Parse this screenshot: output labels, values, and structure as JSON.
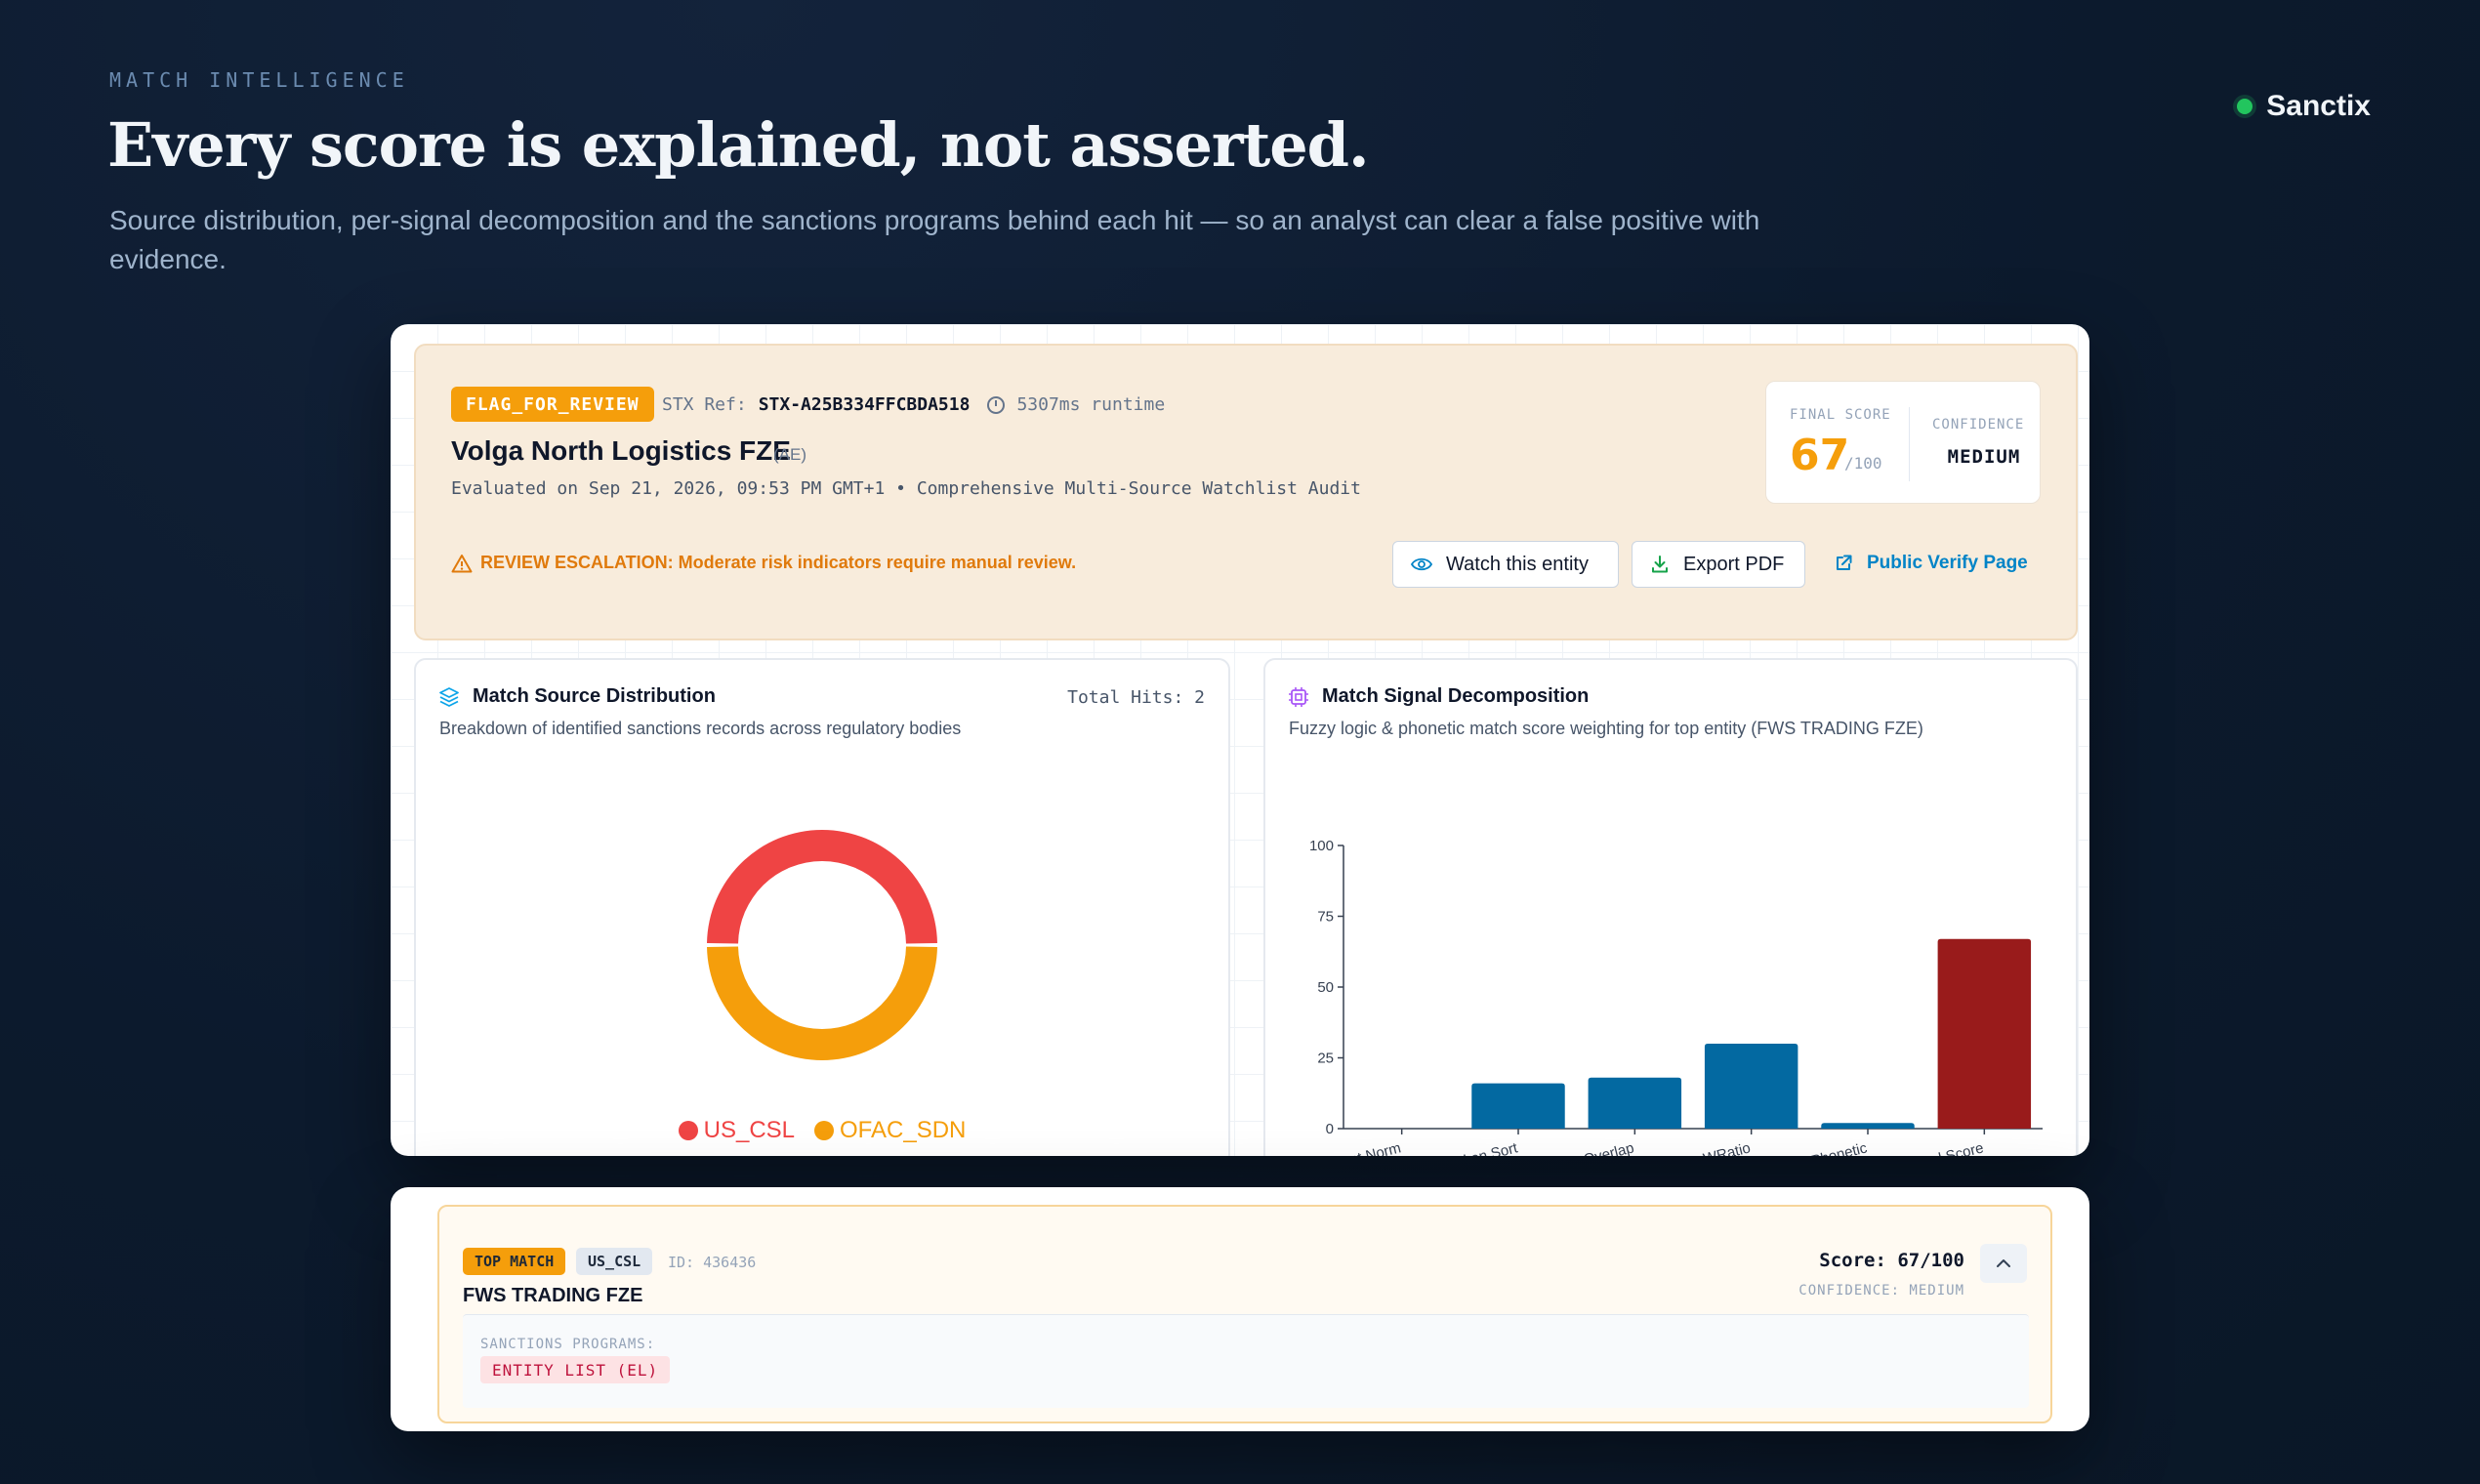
{
  "header": {
    "eyebrow": "MATCH INTELLIGENCE",
    "title": "Every score is explained, not asserted.",
    "subtitle": "Source distribution, per-signal decomposition and the sanctions programs behind each hit — so an analyst can clear a false positive with evidence.",
    "brand": "Sanctix"
  },
  "summary": {
    "decision_badge": "FLAG_FOR_REVIEW",
    "ref_label": "STX Ref:",
    "ref_value": "STX-A25B334FFCBDA518",
    "runtime": "5307ms runtime",
    "entity_name": "Volga North Logistics FZE",
    "country_code": "(AE)",
    "evaluated": "Evaluated on Sep 21, 2026, 09:53 PM GMT+1 • Comprehensive Multi-Source Watchlist Audit",
    "warning": "REVIEW ESCALATION: Moderate risk indicators require manual review.",
    "final_score_label": "FINAL SCORE",
    "final_score": "67",
    "final_score_max": "/100",
    "confidence_label": "CONFIDENCE",
    "confidence": "MEDIUM",
    "watch_button": "Watch this entity",
    "export_button": "Export PDF",
    "verify_link": "Public Verify Page",
    "colors": {
      "accent": "#f59e0b",
      "warning": "#e07a0c",
      "link": "#0284c7"
    }
  },
  "source_panel": {
    "title": "Match Source Distribution",
    "subtitle": "Breakdown of identified sanctions records across regulatory bodies",
    "total_hits": "Total Hits: 2"
  },
  "signal_panel": {
    "title": "Match Signal Decomposition",
    "subtitle": "Fuzzy logic & phonetic match score weighting for top entity (FWS TRADING FZE)"
  },
  "chart_data": [
    {
      "type": "pie",
      "title": "",
      "categories": [
        "US_CSL",
        "OFAC_SDN"
      ],
      "values": [
        1,
        1
      ],
      "colors": [
        "#ef4444",
        "#f59e0b"
      ],
      "legend": "bottom"
    },
    {
      "type": "bar",
      "title": "",
      "categories": [
        "Exact Norm",
        "Token Sort",
        "Token Overlap",
        "Fuzzy WRatio",
        "Phonetic",
        "Final Score"
      ],
      "values": [
        0,
        16,
        18,
        30,
        2,
        67
      ],
      "colors": [
        "#0369a1",
        "#0369a1",
        "#0369a1",
        "#0369a1",
        "#0369a1",
        "#991b1b"
      ],
      "yticks": [
        0,
        25,
        50,
        75,
        100
      ],
      "ylim": [
        0,
        100
      ],
      "xlabel": "",
      "ylabel": "",
      "grid": false
    }
  ],
  "top_match": {
    "badge": "TOP MATCH",
    "source": "US_CSL",
    "id": "ID: 436436",
    "name": "FWS TRADING FZE",
    "score": "Score: 67/100",
    "confidence": "CONFIDENCE: MEDIUM",
    "programs_label": "SANCTIONS PROGRAMS:",
    "programs": [
      "ENTITY LIST (EL)"
    ]
  }
}
